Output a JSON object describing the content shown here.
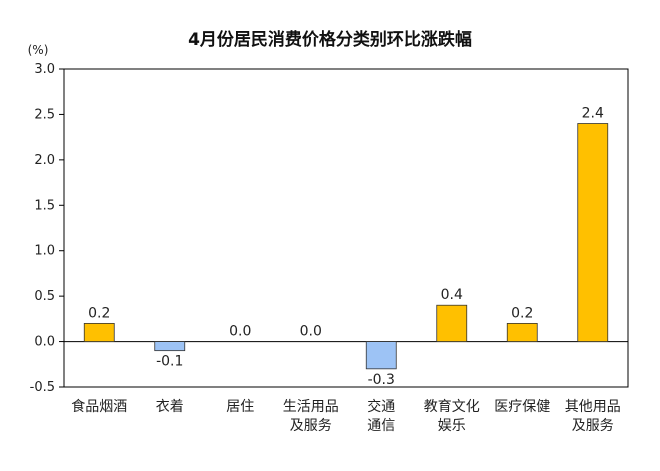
{
  "chart_data": {
    "type": "bar",
    "title": "4月份居民消费价格分类别环比涨跌幅",
    "unit": "(%)",
    "categories": [
      [
        "食品烟酒"
      ],
      [
        "衣着"
      ],
      [
        "居住"
      ],
      [
        "生活用品",
        "及服务"
      ],
      [
        "交通",
        "通信"
      ],
      [
        "教育文化",
        "娱乐"
      ],
      [
        "医疗保健"
      ],
      [
        "其他用品",
        "及服务"
      ]
    ],
    "values": [
      0.2,
      -0.1,
      0.0,
      0.0,
      -0.3,
      0.4,
      0.2,
      2.4
    ],
    "value_labels": [
      "0.2",
      "-0.1",
      "0.0",
      "0.0",
      "-0.3",
      "0.4",
      "0.2",
      "2.4"
    ],
    "ylim": [
      -0.5,
      3.0
    ],
    "yticks": [
      "3.0",
      "2.5",
      "2.0",
      "1.5",
      "1.0",
      "0.5",
      "0.0",
      "-0.5"
    ],
    "ytick_values": [
      3.0,
      2.5,
      2.0,
      1.5,
      1.0,
      0.5,
      0.0,
      -0.5
    ],
    "grid": false,
    "legend": "none",
    "colors": {
      "positive": "#FFC000",
      "negative": "#9DC3F5",
      "border": "#333333",
      "axis": "#000000"
    }
  }
}
